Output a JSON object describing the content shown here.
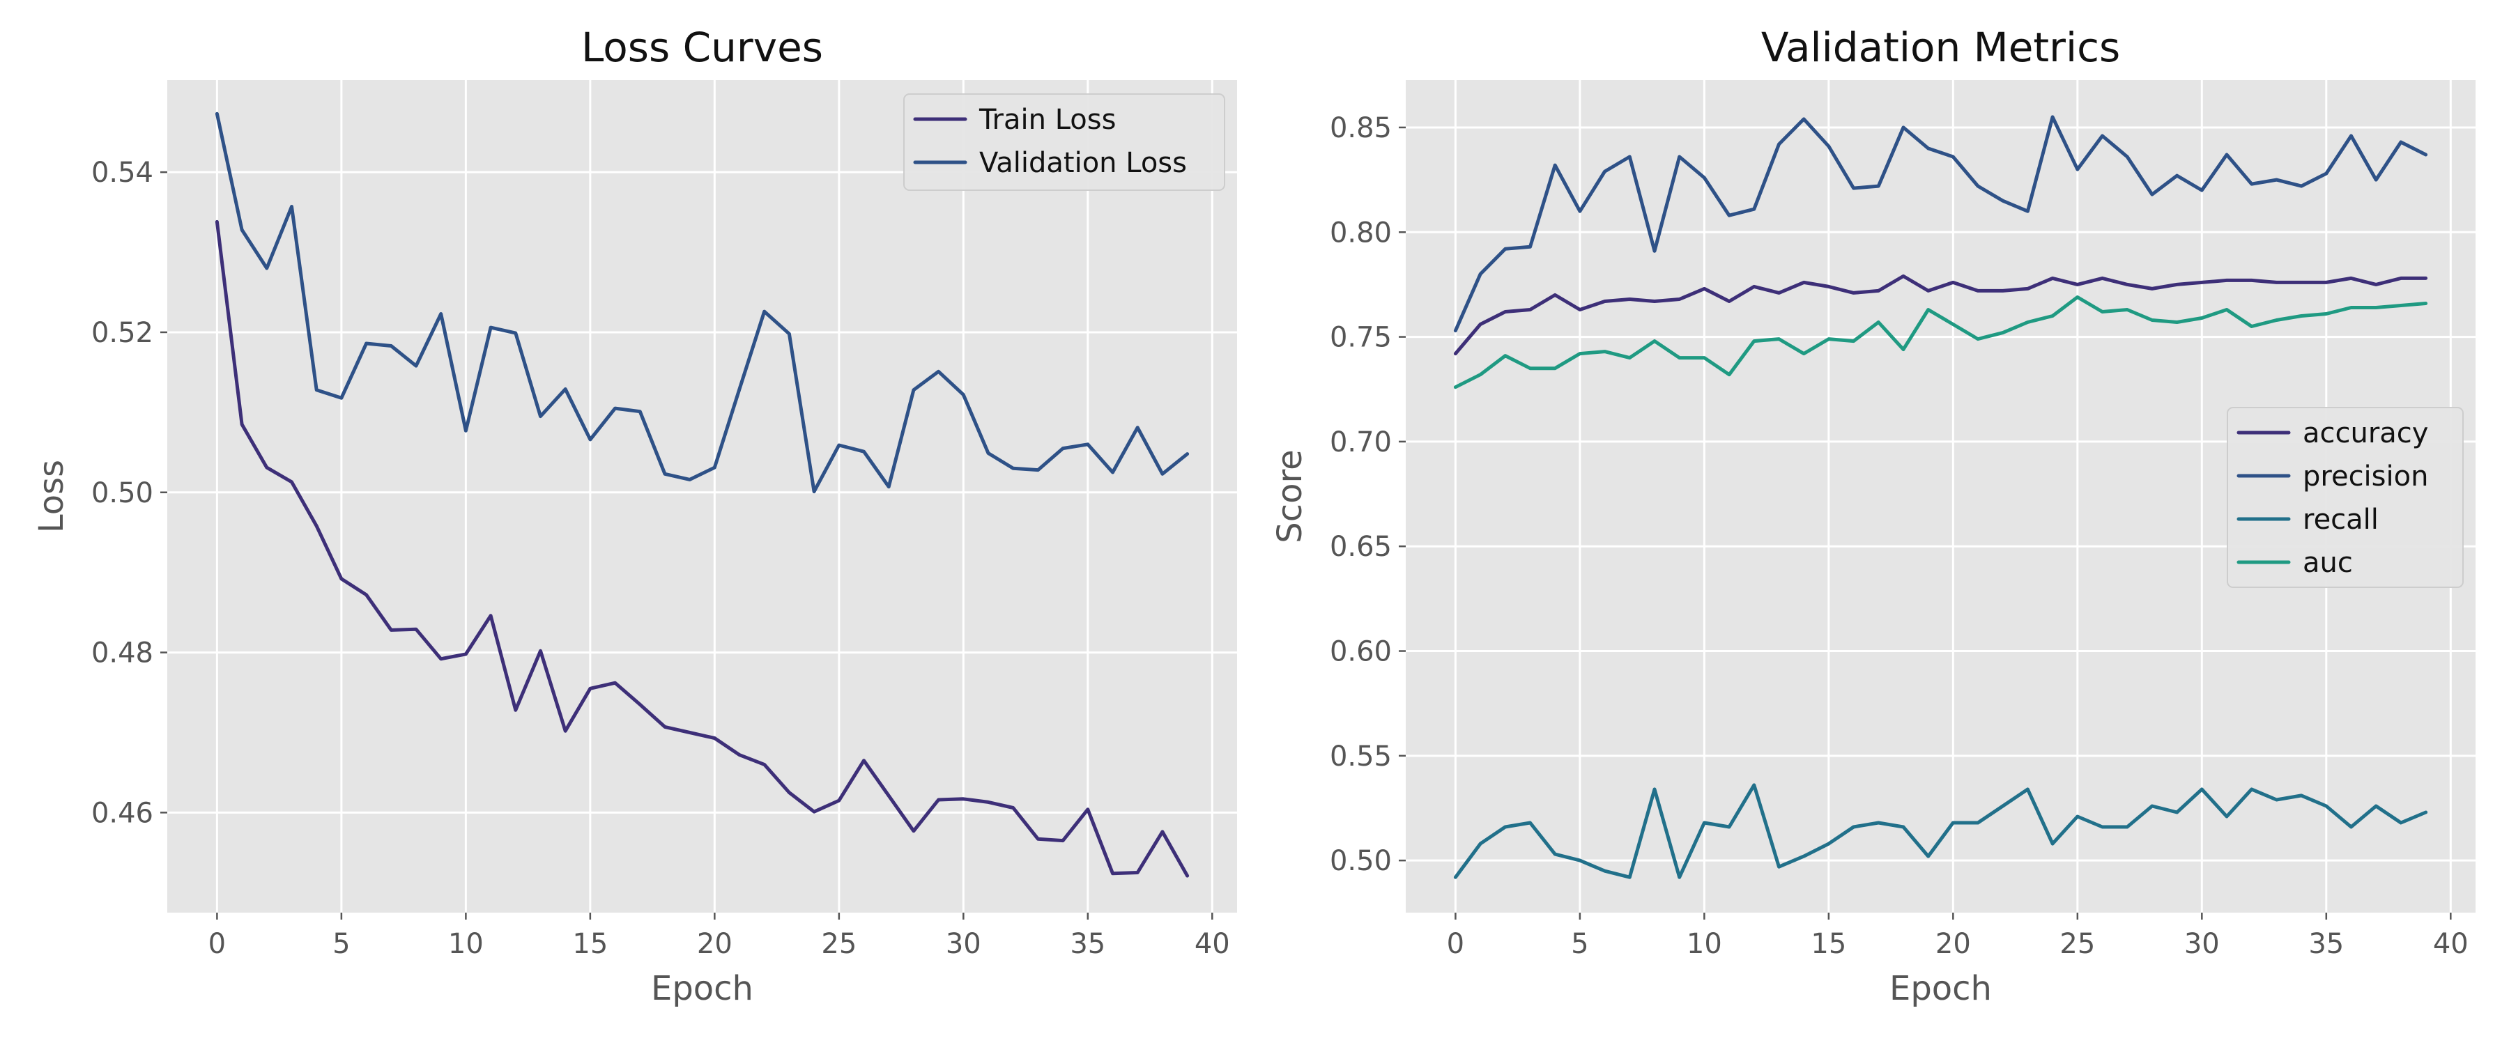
{
  "chart_data": [
    {
      "type": "line",
      "title": "Loss Curves",
      "xlabel": "Epoch",
      "ylabel": "Loss",
      "xlim": [
        -2,
        41
      ],
      "ylim": [
        0.4475,
        0.5515
      ],
      "xticks": [
        0,
        5,
        10,
        15,
        20,
        25,
        30,
        35,
        40
      ],
      "yticks": [
        0.46,
        0.48,
        0.5,
        0.52,
        0.54
      ],
      "grid": true,
      "legend_position": "top-right",
      "x": [
        0,
        1,
        2,
        3,
        4,
        5,
        6,
        7,
        8,
        9,
        10,
        11,
        12,
        13,
        14,
        15,
        16,
        17,
        18,
        19,
        20,
        21,
        22,
        23,
        24,
        25,
        26,
        27,
        28,
        29,
        30,
        31,
        32,
        33,
        34,
        35,
        36,
        37,
        38,
        39
      ],
      "series": [
        {
          "name": "Train Loss",
          "color": "#3d2f78",
          "values": [
            0.5338,
            0.5085,
            0.5031,
            0.5013,
            0.4958,
            0.4892,
            0.4872,
            0.4828,
            0.4829,
            0.4792,
            0.4798,
            0.4846,
            0.4728,
            0.4802,
            0.4702,
            0.4755,
            0.4762,
            0.4735,
            0.4707,
            0.47,
            0.4693,
            0.4672,
            0.466,
            0.4625,
            0.4601,
            0.4615,
            0.4665,
            0.4621,
            0.4577,
            0.4616,
            0.4617,
            0.4613,
            0.4606,
            0.4567,
            0.4565,
            0.4604,
            0.4524,
            0.4525,
            0.4576,
            0.4521
          ]
        },
        {
          "name": "Validation Loss",
          "color": "#2e5187",
          "values": [
            0.5473,
            0.5328,
            0.528,
            0.5357,
            0.5128,
            0.5118,
            0.5186,
            0.5183,
            0.5158,
            0.5223,
            0.5077,
            0.5206,
            0.5199,
            0.5095,
            0.5129,
            0.5066,
            0.5105,
            0.5101,
            0.5023,
            0.5016,
            0.5031,
            0.5129,
            0.5226,
            0.5198,
            0.5001,
            0.5059,
            0.5051,
            0.5007,
            0.5128,
            0.5151,
            0.5122,
            0.5049,
            0.503,
            0.5028,
            0.5055,
            0.506,
            0.5025,
            0.5081,
            0.5023,
            0.5048
          ]
        }
      ]
    },
    {
      "type": "line",
      "title": "Validation Metrics",
      "xlabel": "Epoch",
      "ylabel": "Score",
      "xlim": [
        -2,
        41
      ],
      "ylim": [
        0.4751,
        0.8726
      ],
      "xticks": [
        0,
        5,
        10,
        15,
        20,
        25,
        30,
        35,
        40
      ],
      "yticks": [
        0.5,
        0.55,
        0.6,
        0.65,
        0.7,
        0.75,
        0.8,
        0.85
      ],
      "grid": true,
      "legend_position": "center-right",
      "x": [
        0,
        1,
        2,
        3,
        4,
        5,
        6,
        7,
        8,
        9,
        10,
        11,
        12,
        13,
        14,
        15,
        16,
        17,
        18,
        19,
        20,
        21,
        22,
        23,
        24,
        25,
        26,
        27,
        28,
        29,
        30,
        31,
        32,
        33,
        34,
        35,
        36,
        37,
        38,
        39
      ],
      "series": [
        {
          "name": "accuracy",
          "color": "#3d2f78",
          "values": [
            0.742,
            0.756,
            0.762,
            0.763,
            0.77,
            0.763,
            0.767,
            0.768,
            0.767,
            0.768,
            0.773,
            0.767,
            0.774,
            0.771,
            0.776,
            0.774,
            0.771,
            0.772,
            0.779,
            0.772,
            0.776,
            0.772,
            0.772,
            0.773,
            0.778,
            0.775,
            0.778,
            0.775,
            0.773,
            0.775,
            0.776,
            0.777,
            0.777,
            0.776,
            0.776,
            0.776,
            0.778,
            0.775,
            0.778,
            0.778
          ]
        },
        {
          "name": "precision",
          "color": "#2e5187",
          "values": [
            0.753,
            0.78,
            0.792,
            0.793,
            0.832,
            0.81,
            0.829,
            0.836,
            0.791,
            0.836,
            0.826,
            0.808,
            0.811,
            0.842,
            0.854,
            0.841,
            0.821,
            0.822,
            0.85,
            0.84,
            0.836,
            0.822,
            0.815,
            0.81,
            0.855,
            0.83,
            0.846,
            0.836,
            0.818,
            0.827,
            0.82,
            0.837,
            0.823,
            0.825,
            0.822,
            0.828,
            0.846,
            0.825,
            0.843,
            0.837
          ]
        },
        {
          "name": "recall",
          "color": "#21708a",
          "values": [
            0.492,
            0.508,
            0.516,
            0.518,
            0.503,
            0.5,
            0.495,
            0.492,
            0.534,
            0.492,
            0.518,
            0.516,
            0.536,
            0.497,
            0.502,
            0.508,
            0.516,
            0.518,
            0.516,
            0.502,
            0.518,
            0.518,
            0.526,
            0.534,
            0.508,
            0.521,
            0.516,
            0.516,
            0.526,
            0.523,
            0.534,
            0.521,
            0.534,
            0.529,
            0.531,
            0.526,
            0.516,
            0.526,
            0.518,
            0.523
          ]
        },
        {
          "name": "auc",
          "color": "#1f9a82",
          "values": [
            0.726,
            0.732,
            0.741,
            0.735,
            0.735,
            0.742,
            0.743,
            0.74,
            0.748,
            0.74,
            0.74,
            0.732,
            0.748,
            0.749,
            0.742,
            0.749,
            0.748,
            0.757,
            0.744,
            0.763,
            0.756,
            0.749,
            0.752,
            0.757,
            0.76,
            0.769,
            0.762,
            0.763,
            0.758,
            0.757,
            0.759,
            0.763,
            0.755,
            0.758,
            0.76,
            0.761,
            0.764,
            0.764,
            0.765,
            0.766
          ]
        }
      ]
    }
  ]
}
